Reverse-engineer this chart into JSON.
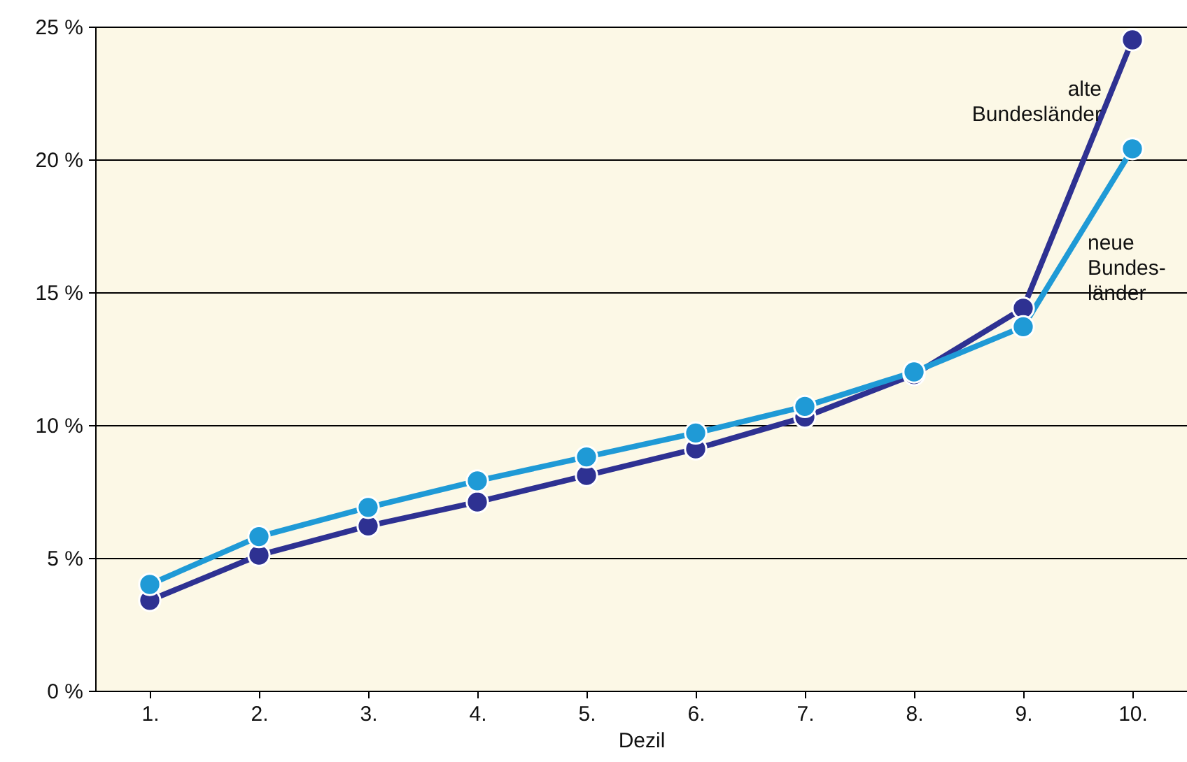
{
  "chart_data": {
    "type": "line",
    "xlabel": "Dezil",
    "categories": [
      "1.",
      "2.",
      "3.",
      "4.",
      "5.",
      "6.",
      "7.",
      "8.",
      "9.",
      "10."
    ],
    "series": [
      {
        "name": "alte\nBundesländer",
        "color": "#2e3192",
        "values": [
          3.4,
          5.1,
          6.2,
          7.1,
          8.1,
          9.1,
          10.3,
          11.9,
          14.4,
          24.5
        ]
      },
      {
        "name": "neue\nBundes-\nländer",
        "color": "#1f9ad6",
        "values": [
          4.0,
          5.8,
          6.9,
          7.9,
          8.8,
          9.7,
          10.7,
          12.0,
          13.7,
          20.4
        ]
      }
    ],
    "ylim": [
      0,
      25
    ],
    "yticks": [
      {
        "value": 0,
        "label": "0 %"
      },
      {
        "value": 5,
        "label": "5 %"
      },
      {
        "value": 10,
        "label": "10 %"
      },
      {
        "value": 15,
        "label": "15 %"
      },
      {
        "value": 20,
        "label": "20 %"
      },
      {
        "value": 25,
        "label": "25 %"
      }
    ],
    "grid": "y",
    "marker": "circle",
    "line_style": "solid"
  }
}
